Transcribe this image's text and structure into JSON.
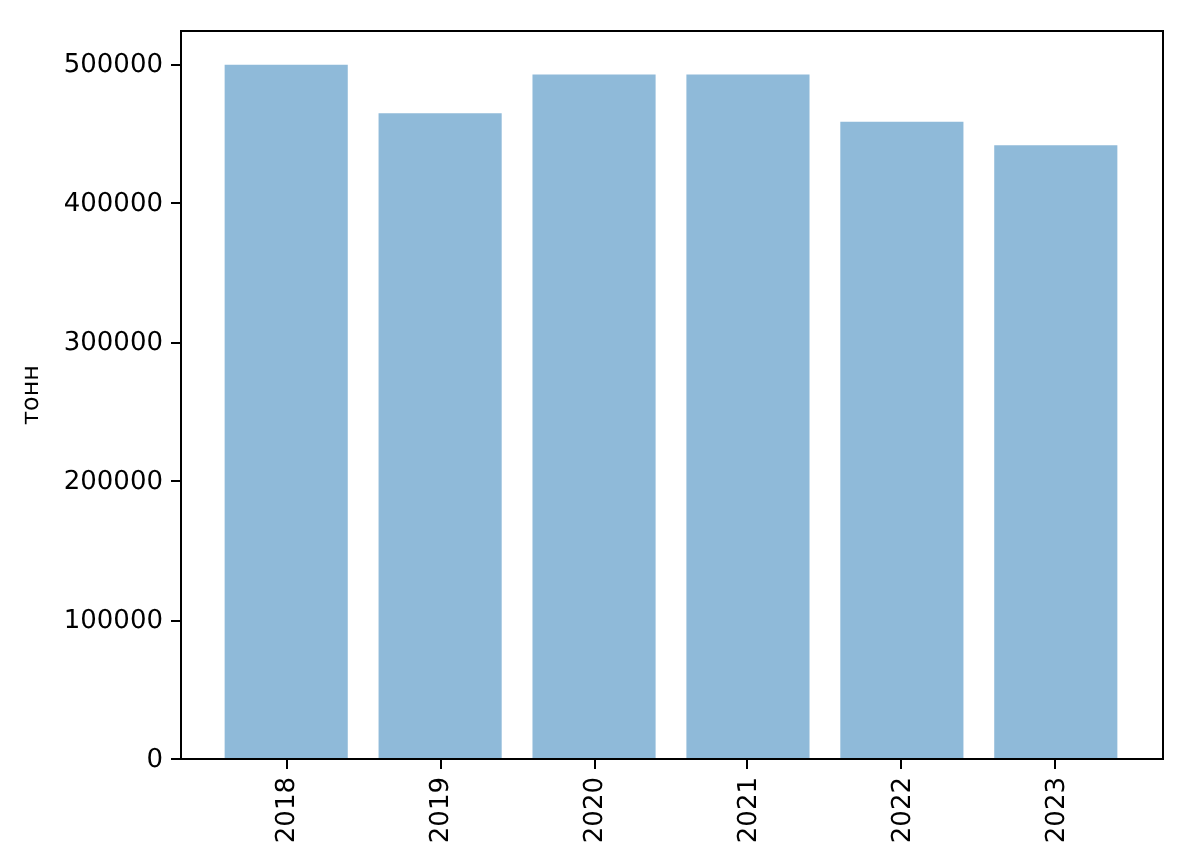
{
  "chart_data": {
    "type": "bar",
    "ylabel": "тонн",
    "categories": [
      "2018",
      "2019",
      "2020",
      "2021",
      "2022",
      "2023"
    ],
    "values": [
      499000,
      464000,
      492000,
      492000,
      458000,
      441000
    ],
    "color": "#8fbad9",
    "ylim": [
      0,
      524000
    ],
    "yticks": [
      0,
      100000,
      200000,
      300000,
      400000,
      500000
    ],
    "grid": false
  }
}
